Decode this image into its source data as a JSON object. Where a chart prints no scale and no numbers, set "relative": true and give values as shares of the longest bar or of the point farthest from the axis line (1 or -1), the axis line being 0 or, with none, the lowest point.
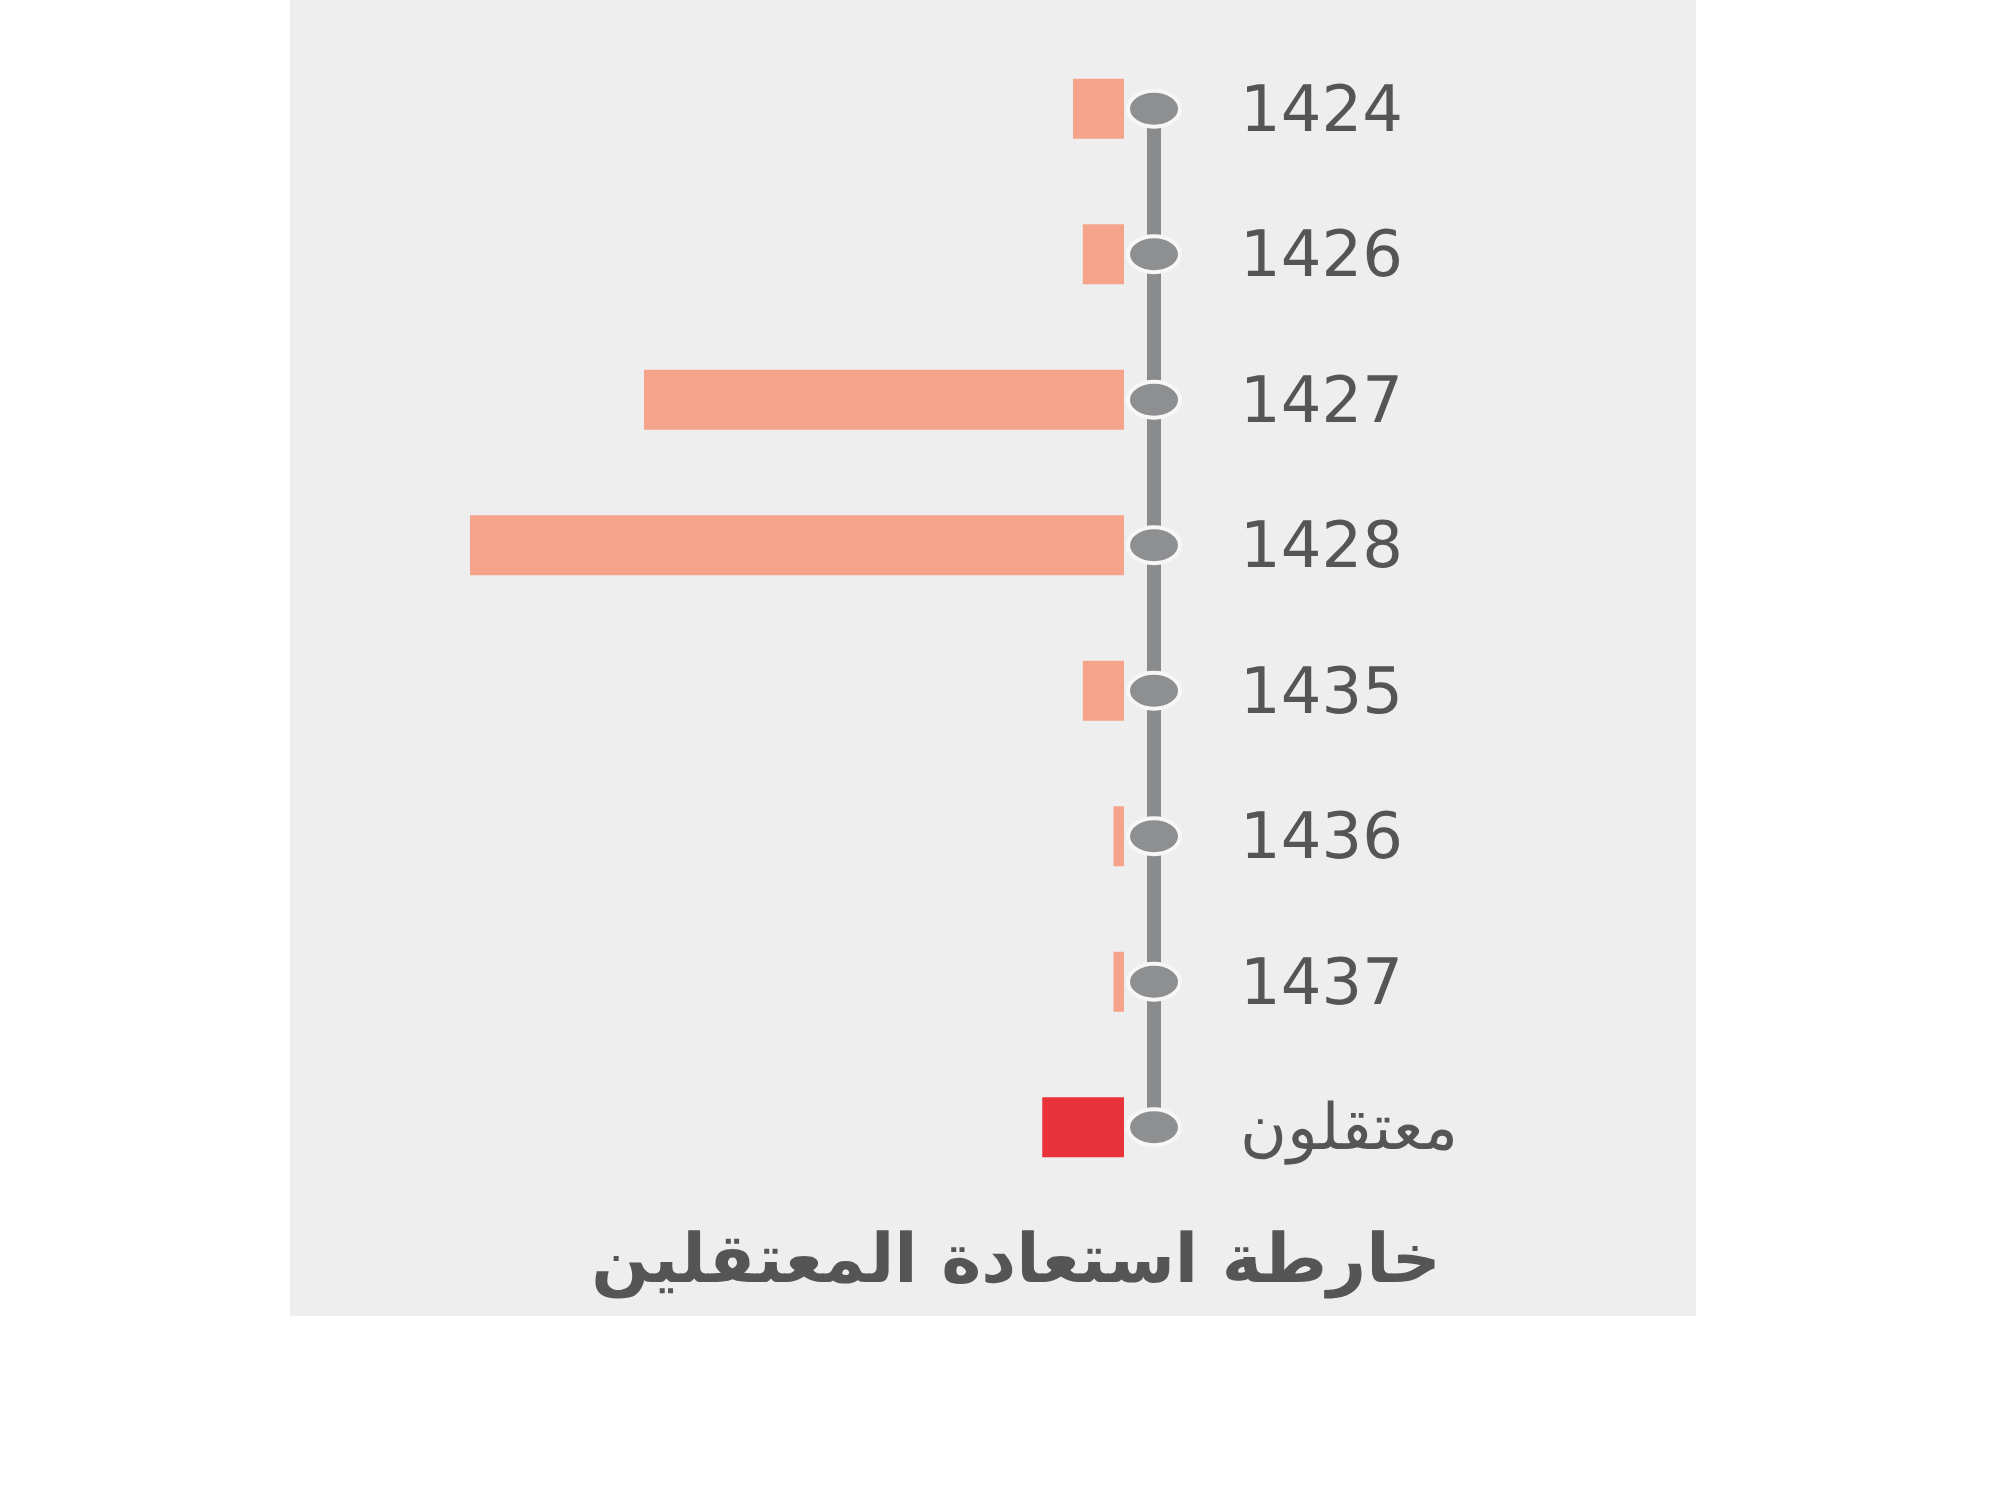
{
  "chart_data": {
    "type": "bar",
    "orientation": "horizontal",
    "relative": true,
    "title": "خارطة استعادة المعتقلين",
    "categories": [
      "1424",
      "1426",
      "1427",
      "1428",
      "1435",
      "1436",
      "1437",
      "معتقلون"
    ],
    "values": [
      0.078,
      0.063,
      0.734,
      1,
      0.063,
      0.016,
      0.016,
      0.125
    ],
    "colors": [
      "#f5a48b",
      "#f5a48b",
      "#f5a48b",
      "#f5a48b",
      "#f5a48b",
      "#f5a48b",
      "#f5a48b",
      "#e8333b"
    ]
  }
}
